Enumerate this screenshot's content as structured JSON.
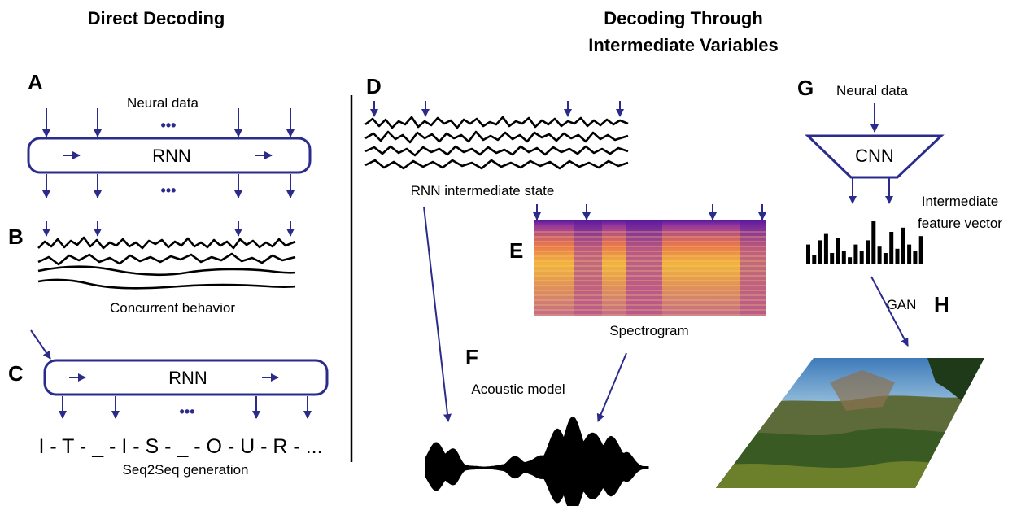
{
  "headers": {
    "direct": "Direct Decoding",
    "intermediate_line1": "Decoding Through",
    "intermediate_line2": "Intermediate Variables"
  },
  "panels": {
    "A": {
      "letter": "A",
      "input_label": "Neural data",
      "box_label": "RNN",
      "ellipsis": "•••"
    },
    "B": {
      "letter": "B",
      "label": "Concurrent behavior"
    },
    "C": {
      "letter": "C",
      "box_label": "RNN",
      "ellipsis": "•••",
      "sequence": "I - T - _ - I - S - _ - O - U - R - ...",
      "label": "Seq2Seq generation"
    },
    "D": {
      "letter": "D",
      "label": "RNN intermediate state"
    },
    "E": {
      "letter": "E",
      "label": "Spectrogram"
    },
    "F": {
      "letter": "F",
      "label": "Acoustic model"
    },
    "G": {
      "letter": "G",
      "input_label": "Neural data",
      "box_label": "CNN",
      "feature_label_line1": "Intermediate",
      "feature_label_line2": "feature vector",
      "feature_bars": [
        0.45,
        0.2,
        0.55,
        0.7,
        0.25,
        0.6,
        0.3,
        0.15,
        0.45,
        0.3,
        0.55,
        1.0,
        0.4,
        0.25,
        0.75,
        0.35,
        0.85,
        0.45,
        0.3,
        0.65
      ]
    },
    "H": {
      "letter": "H",
      "label": "GAN"
    }
  },
  "colors": {
    "arrow": "#2b2b8c",
    "trace": "#000000",
    "spectrogram_high": "#f2b43c",
    "spectrogram_low": "#5b1a9e"
  }
}
